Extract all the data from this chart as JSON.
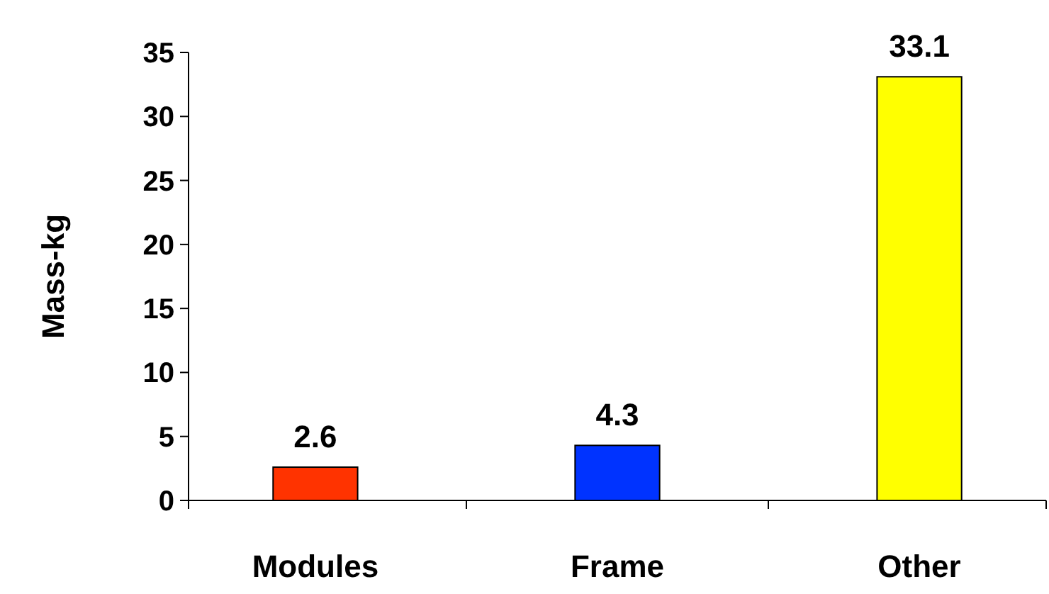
{
  "chart_data": {
    "type": "bar",
    "ylabel": "Mass-kg",
    "categories": [
      "Modules",
      "Frame",
      "Other"
    ],
    "values": [
      2.6,
      4.3,
      33.1
    ],
    "colors": [
      "#ff3300",
      "#0033ff",
      "#ffff00"
    ],
    "ylim": [
      0,
      35
    ],
    "yticks": [
      0,
      5,
      10,
      15,
      20,
      25,
      30,
      35
    ],
    "data_labels": true,
    "grid": false
  }
}
